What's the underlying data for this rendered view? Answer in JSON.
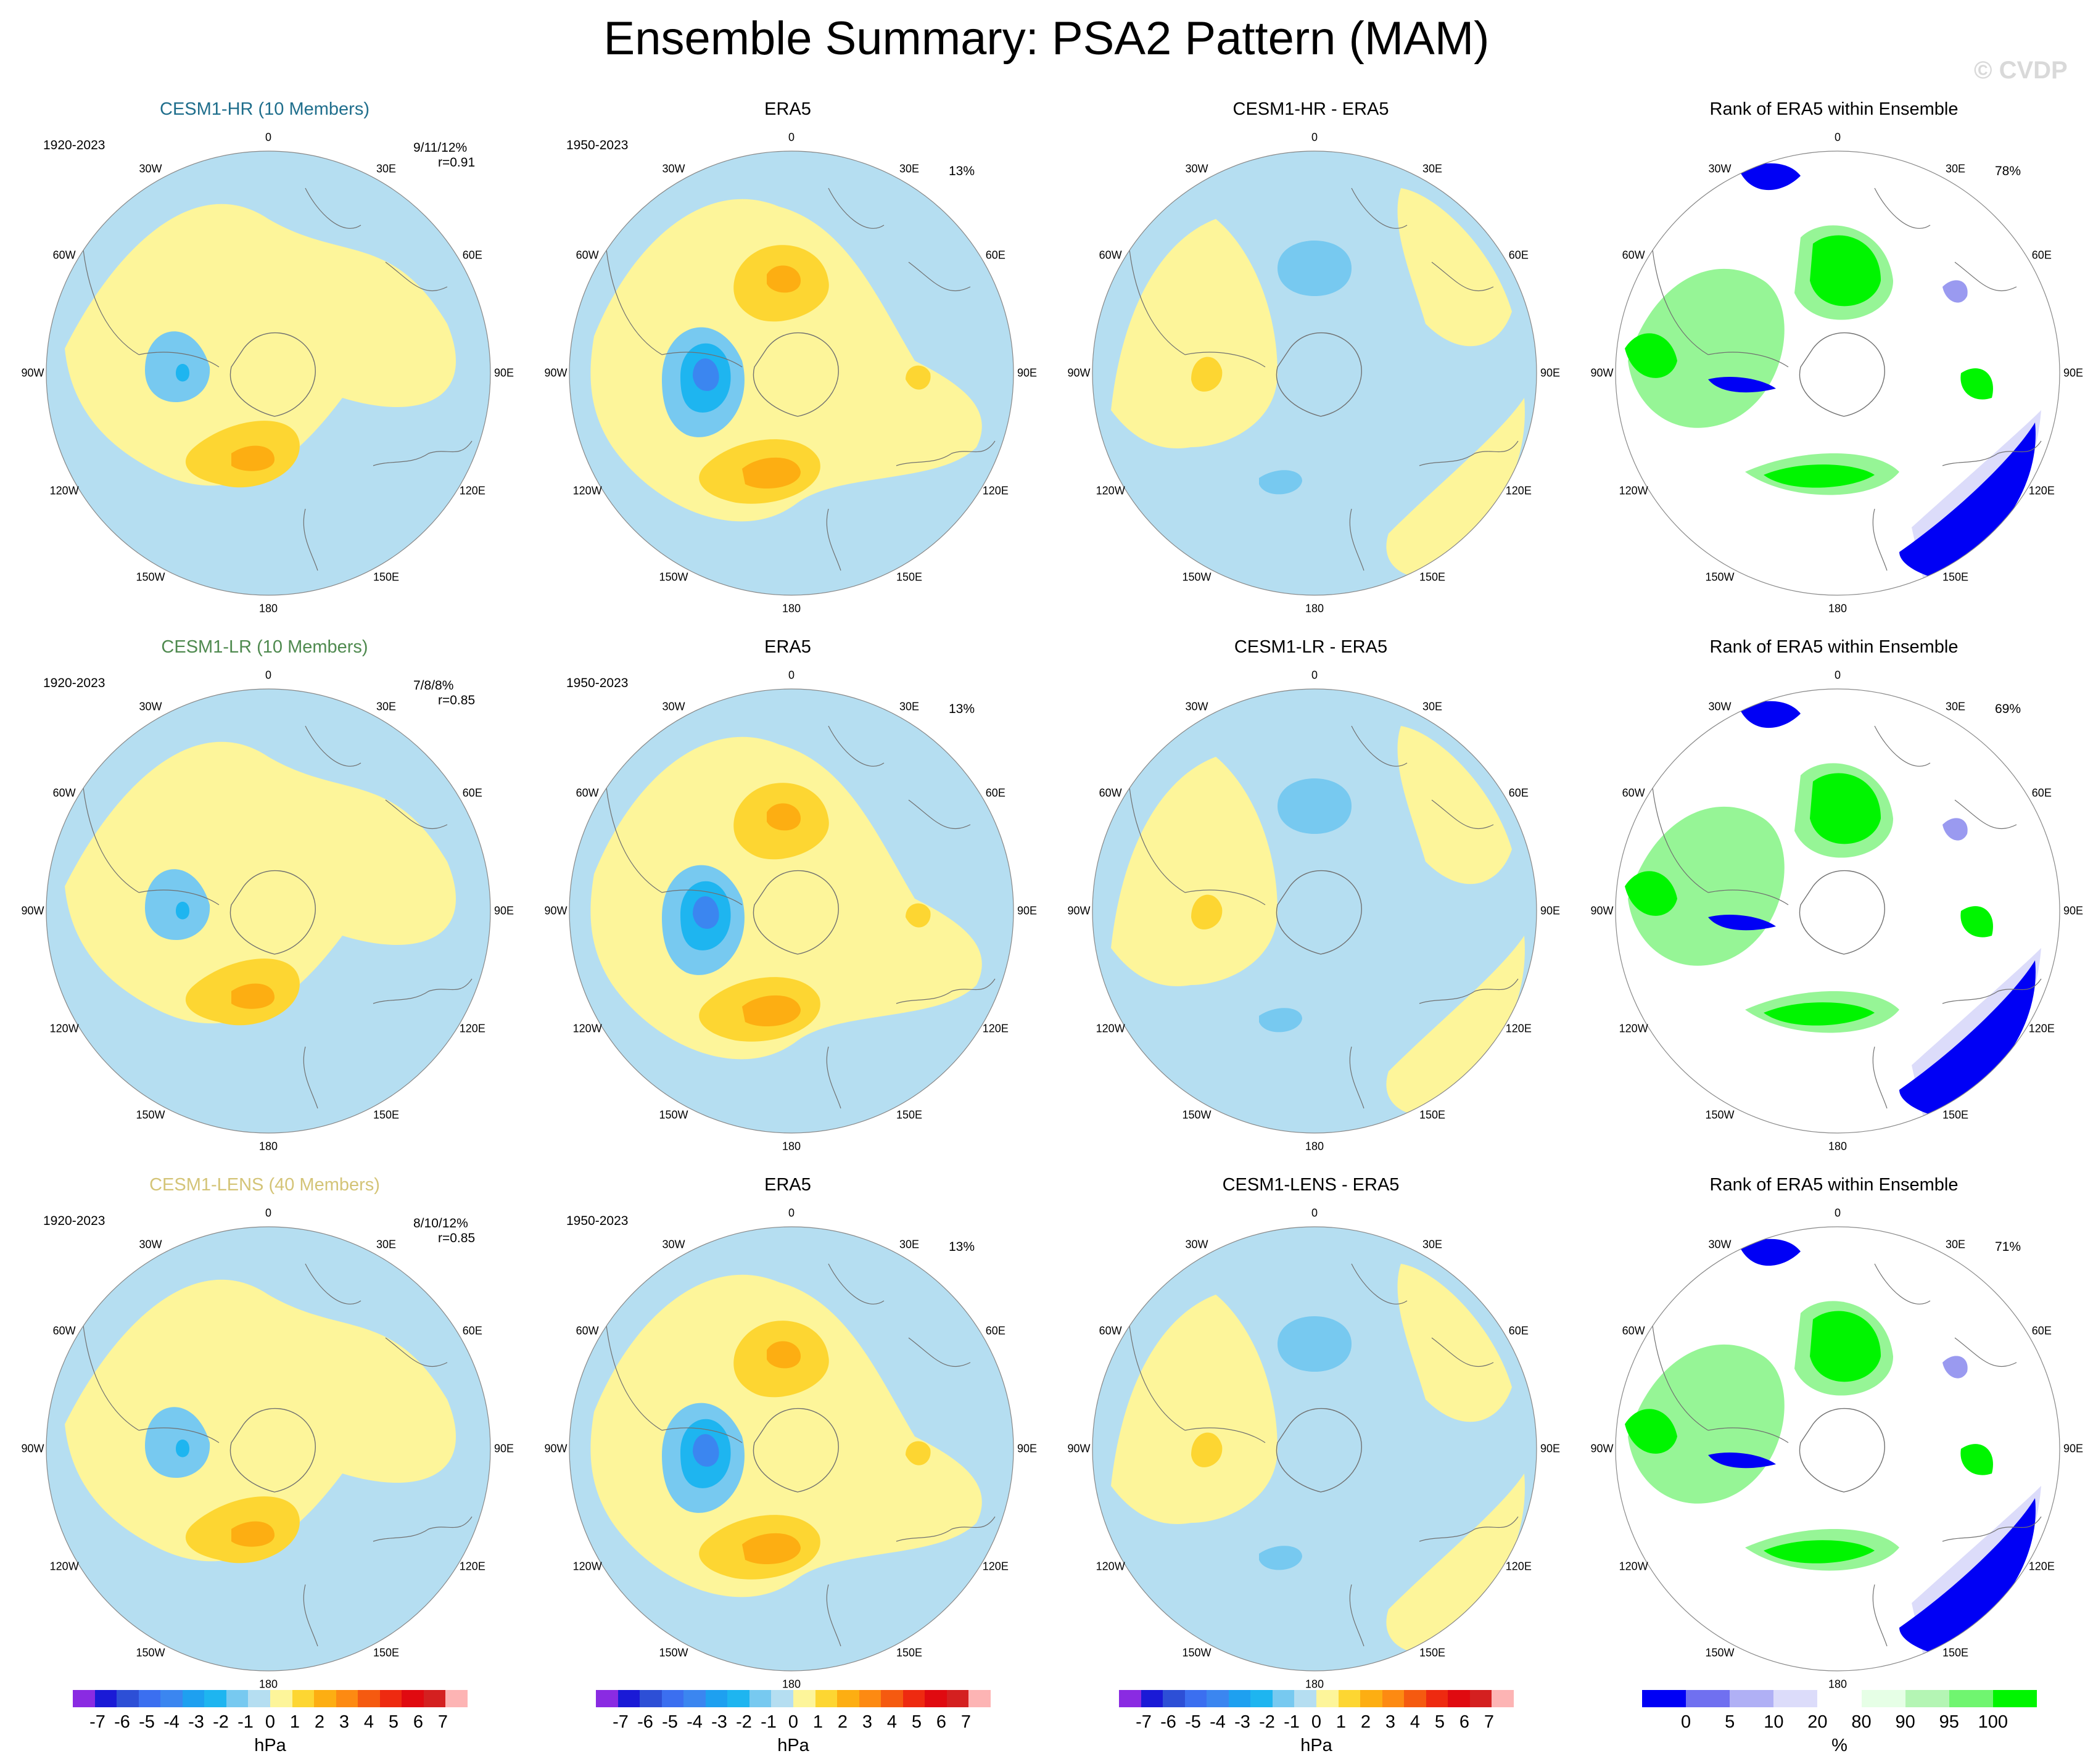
{
  "figure": {
    "title": "Ensemble Summary: PSA2 Pattern (MAM)",
    "watermark": "© CVDP"
  },
  "lon_labels": [
    "0",
    "30E",
    "60E",
    "90E",
    "120E",
    "150E",
    "180",
    "150W",
    "120W",
    "90W",
    "60W",
    "30W"
  ],
  "colors": {
    "neg1": "#b5def1",
    "neg2": "#77c9f0",
    "neg3": "#1eb5f0",
    "neg4": "#3b86f0",
    "pos1": "#fdf59a",
    "pos2": "#fdd632",
    "pos3": "#fdae12",
    "rank_dark_blue": "#0000f5",
    "rank_mid_blue": "#9a9af0",
    "rank_light_blue": "#dcdcfa",
    "rank_green": "#00f500",
    "rank_light_green": "#96f596",
    "rank_pale_green": "#e6ffe6",
    "land_line": "#707070"
  },
  "chart_data": [
    {
      "type": "heatmap",
      "id": "r1c1",
      "title": "CESM1-HR (10 Members)",
      "title_color": "#1f6e8c",
      "period": "1920-2023",
      "stat_pct": "9/11/12%",
      "stat_r": "r=0.91",
      "units": "hPa"
    },
    {
      "type": "heatmap",
      "id": "r1c2",
      "title": "ERA5",
      "period": "1950-2023",
      "pct": "13%",
      "units": "hPa"
    },
    {
      "type": "heatmap",
      "id": "r1c3",
      "title": "CESM1-HR - ERA5",
      "units": "hPa"
    },
    {
      "type": "heatmap",
      "id": "r1c4",
      "title": "Rank of ERA5 within Ensemble",
      "pct": "78%",
      "units": "%"
    },
    {
      "type": "heatmap",
      "id": "r2c1",
      "title": "CESM1-LR (10 Members)",
      "title_color": "#4f8a4f",
      "period": "1920-2023",
      "stat_pct": "7/8/8%",
      "stat_r": "r=0.85",
      "units": "hPa"
    },
    {
      "type": "heatmap",
      "id": "r2c2",
      "title": "ERA5",
      "period": "1950-2023",
      "pct": "13%",
      "units": "hPa"
    },
    {
      "type": "heatmap",
      "id": "r2c3",
      "title": "CESM1-LR - ERA5",
      "units": "hPa"
    },
    {
      "type": "heatmap",
      "id": "r2c4",
      "title": "Rank of ERA5 within Ensemble",
      "pct": "69%",
      "units": "%"
    },
    {
      "type": "heatmap",
      "id": "r3c1",
      "title": "CESM1-LENS (40 Members)",
      "title_color": "#d4c477",
      "period": "1920-2023",
      "stat_pct": "8/10/12%",
      "stat_r": "r=0.85",
      "units": "hPa"
    },
    {
      "type": "heatmap",
      "id": "r3c2",
      "title": "ERA5",
      "period": "1950-2023",
      "pct": "13%",
      "units": "hPa"
    },
    {
      "type": "heatmap",
      "id": "r3c3",
      "title": "CESM1-LENS - ERA5",
      "units": "hPa"
    },
    {
      "type": "heatmap",
      "id": "r3c4",
      "title": "Rank of ERA5 within Ensemble",
      "pct": "71%",
      "units": "%"
    }
  ],
  "colorbar_hpa": {
    "ticks": [
      "-7",
      "-6",
      "-5",
      "-4",
      "-3",
      "-2",
      "-1",
      "0",
      "1",
      "2",
      "3",
      "4",
      "5",
      "6",
      "7"
    ],
    "colors": [
      "#8a2be2",
      "#1a1ad6",
      "#2d4fd6",
      "#3b6ff0",
      "#3b86f0",
      "#1ea0f0",
      "#1eb5f0",
      "#77c9f0",
      "#b5def1",
      "#fdf59a",
      "#fdd632",
      "#fdae12",
      "#fd8a12",
      "#f55a10",
      "#ee2a10",
      "#e00a10",
      "#d42020",
      "#fdb4b4"
    ],
    "unit": "hPa"
  },
  "colorbar_rank": {
    "ticks": [
      "0",
      "5",
      "10",
      "20",
      "80",
      "90",
      "95",
      "100"
    ],
    "colors": [
      "#0000f5",
      "#7070f0",
      "#b0b0f5",
      "#dcdcfa",
      "#ffffff",
      "#e6ffe6",
      "#b4f5b4",
      "#70f570",
      "#00f500"
    ],
    "unit": "%"
  }
}
